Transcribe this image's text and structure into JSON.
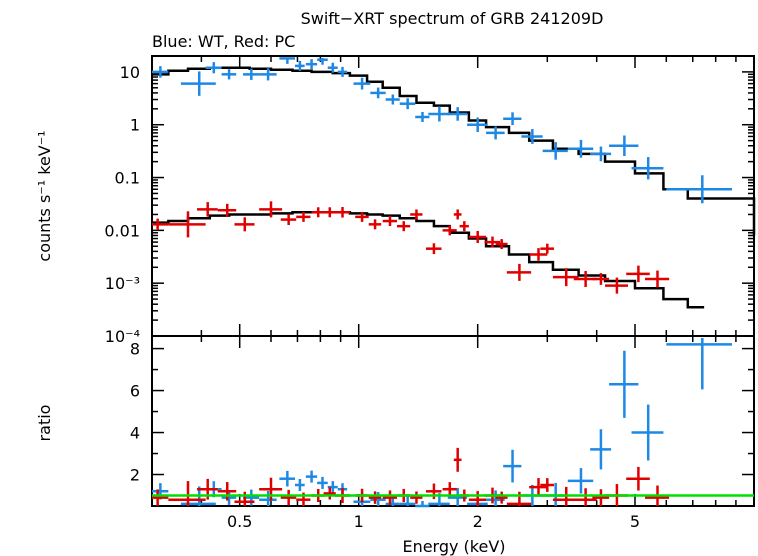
{
  "title": "Swift−XRT spectrum of GRB 241209D",
  "subtitle": "Blue: WT, Red: PC",
  "colors": {
    "wt": "#1e88e5",
    "pc": "#e00000",
    "model": "#000000",
    "unity": "#00e000",
    "axes": "#000000"
  },
  "chart_data": [
    {
      "type": "scatter",
      "panel": "spectrum",
      "title": "Swift−XRT spectrum of GRB 241209D",
      "ylabel": "counts s⁻¹ keV⁻¹",
      "xscale": "log",
      "yscale": "log",
      "xlim": [
        0.3,
        10
      ],
      "ylim": [
        0.0001,
        20
      ],
      "yticks": [
        {
          "value": 10,
          "label": "10"
        },
        {
          "value": 1,
          "label": "1"
        },
        {
          "value": 0.1,
          "label": "0.1"
        },
        {
          "value": 0.01,
          "label": "0.01"
        },
        {
          "value": 0.001,
          "label": "10⁻³"
        },
        {
          "value": 0.0001,
          "label": "10⁻⁴"
        }
      ],
      "series": [
        {
          "name": "WT",
          "x": [
            0.315,
            0.395,
            0.43,
            0.47,
            0.535,
            0.59,
            0.66,
            0.71,
            0.76,
            0.81,
            0.86,
            0.91,
            1.02,
            1.12,
            1.22,
            1.33,
            1.45,
            1.6,
            1.78,
            2.0,
            2.22,
            2.45,
            2.75,
            3.15,
            3.65,
            4.1,
            4.7,
            5.4,
            7.4
          ],
          "y": [
            10,
            6,
            12,
            9,
            9,
            9,
            18,
            13,
            14,
            17,
            12,
            10,
            6,
            4,
            3,
            2.5,
            1.4,
            1.6,
            1.6,
            1.0,
            0.7,
            1.3,
            0.6,
            0.32,
            0.35,
            0.28,
            0.4,
            0.15,
            0.06
          ],
          "xerr": [
            0.015,
            0.04,
            0.02,
            0.02,
            0.025,
            0.03,
            0.03,
            0.02,
            0.025,
            0.025,
            0.025,
            0.025,
            0.05,
            0.05,
            0.05,
            0.06,
            0.06,
            0.1,
            0.1,
            0.12,
            0.12,
            0.13,
            0.17,
            0.23,
            0.27,
            0.25,
            0.4,
            0.5,
            1.4
          ],
          "ratio": [
            1.2,
            0.6,
            1.3,
            0.9,
            0.9,
            0.8,
            1.8,
            1.5,
            1.9,
            1.6,
            1.4,
            1.3,
            0.7,
            0.8,
            0.6,
            0.6,
            0.4,
            0.6,
            0.9,
            0.6,
            0.8,
            2.4,
            1.0,
            1.0,
            1.7,
            3.2,
            6.3,
            4.0,
            8.2
          ]
        },
        {
          "name": "PC",
          "x": [
            0.31,
            0.37,
            0.415,
            0.465,
            0.515,
            0.6,
            0.665,
            0.725,
            0.79,
            0.845,
            0.91,
            1.02,
            1.1,
            1.2,
            1.3,
            1.4,
            1.55,
            1.7,
            1.78,
            1.85,
            2.0,
            2.18,
            2.3,
            2.55,
            2.85,
            3.0,
            3.35,
            3.75,
            4.1,
            4.5,
            5.1,
            5.7
          ],
          "y": [
            0.013,
            0.013,
            0.025,
            0.024,
            0.013,
            0.025,
            0.016,
            0.018,
            0.022,
            0.022,
            0.022,
            0.018,
            0.013,
            0.015,
            0.012,
            0.02,
            0.0045,
            0.01,
            0.02,
            0.012,
            0.0075,
            0.006,
            0.0055,
            0.0016,
            0.0035,
            0.0045,
            0.0013,
            0.0012,
            0.0012,
            0.0009,
            0.0015,
            0.0012
          ],
          "xerr": [
            0.02,
            0.04,
            0.025,
            0.025,
            0.03,
            0.04,
            0.03,
            0.03,
            0.03,
            0.03,
            0.04,
            0.04,
            0.04,
            0.05,
            0.05,
            0.05,
            0.07,
            0.07,
            0.04,
            0.05,
            0.1,
            0.1,
            0.08,
            0.18,
            0.15,
            0.12,
            0.25,
            0.25,
            0.2,
            0.3,
            0.35,
            0.4
          ],
          "ratio": [
            0.9,
            0.8,
            1.3,
            1.2,
            0.7,
            1.3,
            0.9,
            0.8,
            1.0,
            1.1,
            1.0,
            1.0,
            0.9,
            0.9,
            1.0,
            0.9,
            1.2,
            1.3,
            2.7,
            1.0,
            0.8,
            1.0,
            0.9,
            0.6,
            1.4,
            1.5,
            0.8,
            0.8,
            0.9,
            1.0,
            1.8,
            0.9
          ]
        }
      ],
      "model": [
        {
          "name": "WT model",
          "x": [
            0.3,
            0.33,
            0.37,
            0.42,
            0.47,
            0.53,
            0.6,
            0.68,
            0.76,
            0.86,
            0.95,
            1.05,
            1.15,
            1.27,
            1.4,
            1.55,
            1.7,
            1.9,
            2.1,
            2.4,
            2.7,
            3.1,
            3.6,
            4.2,
            5.0,
            5.9,
            6.8,
            10
          ],
          "y": [
            9,
            10.5,
            11.5,
            12,
            12,
            11.5,
            11,
            10.5,
            10,
            9.5,
            8.5,
            6.5,
            5,
            3.5,
            2.6,
            2.3,
            1.7,
            1.2,
            0.9,
            0.7,
            0.5,
            0.35,
            0.28,
            0.2,
            0.12,
            0.06,
            0.04,
            0.008
          ]
        },
        {
          "name": "PC model",
          "x": [
            0.3,
            0.33,
            0.37,
            0.42,
            0.47,
            0.53,
            0.6,
            0.68,
            0.76,
            0.86,
            0.95,
            1.05,
            1.15,
            1.27,
            1.4,
            1.55,
            1.7,
            1.9,
            2.1,
            2.4,
            2.7,
            3.1,
            3.6,
            4.2,
            5.0,
            5.9,
            6.8
          ],
          "y": [
            0.014,
            0.015,
            0.017,
            0.019,
            0.02,
            0.02,
            0.021,
            0.022,
            0.022,
            0.022,
            0.021,
            0.02,
            0.019,
            0.017,
            0.015,
            0.012,
            0.009,
            0.007,
            0.005,
            0.0035,
            0.0025,
            0.0018,
            0.0014,
            0.0011,
            0.0008,
            0.0005,
            0.00035
          ]
        }
      ]
    },
    {
      "type": "scatter",
      "panel": "ratio",
      "ylabel": "ratio",
      "xlabel": "Energy (keV)",
      "xscale": "log",
      "xlim": [
        0.3,
        10
      ],
      "ylim": [
        0.5,
        8.6
      ],
      "yticks": [
        {
          "value": 2,
          "label": "2"
        },
        {
          "value": 4,
          "label": "4"
        },
        {
          "value": 6,
          "label": "6"
        },
        {
          "value": 8,
          "label": "8"
        }
      ],
      "xticks": [
        {
          "value": 0.5,
          "label": "0.5"
        },
        {
          "value": 1,
          "label": "1"
        },
        {
          "value": 2,
          "label": "2"
        },
        {
          "value": 5,
          "label": "5"
        }
      ],
      "reference_line": 1
    }
  ]
}
